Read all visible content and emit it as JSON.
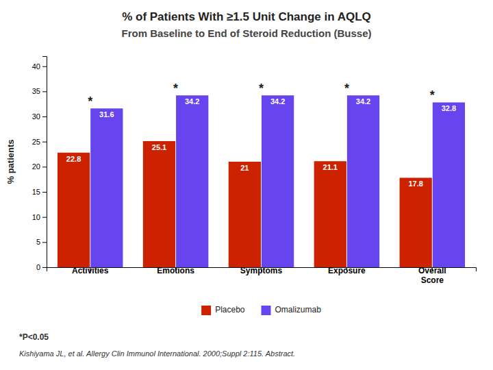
{
  "chart_data": {
    "type": "bar",
    "title": "% of Patients With ≥1.5 Unit Change in AQLQ",
    "subtitle": "From Baseline to End of Steroid Reduction (Busse)",
    "categories": [
      "Activities",
      "Emotions",
      "Symptoms",
      "Exposure",
      "Overall\nScore"
    ],
    "series": [
      {
        "name": "Placebo",
        "color": "#CC2200",
        "values": [
          22.8,
          25.1,
          21,
          21.1,
          17.8
        ]
      },
      {
        "name": "Omalizumab",
        "color": "#6644EE",
        "values": [
          31.6,
          34.2,
          34.2,
          34.2,
          32.8
        ]
      }
    ],
    "ylabel": "% patients",
    "ylim": [
      0,
      42
    ],
    "yticks": [
      0,
      5,
      10,
      15,
      20,
      25,
      30,
      35,
      40
    ],
    "grid": false,
    "legend": "bottom",
    "data_labels": true,
    "annotations": [
      {
        "text": "*",
        "category": "Activities"
      },
      {
        "text": "*",
        "category": "Emotions"
      },
      {
        "text": "*",
        "category": "Symptoms"
      },
      {
        "text": "*",
        "category": "Exposure"
      },
      {
        "text": "*",
        "category": "Overall\nScore"
      }
    ],
    "footnotes": [
      "*P<0.05",
      "Kishiyama JL, et al. Allergy Clin Immunol International. 2000;Suppl 2:115. Abstract."
    ]
  }
}
